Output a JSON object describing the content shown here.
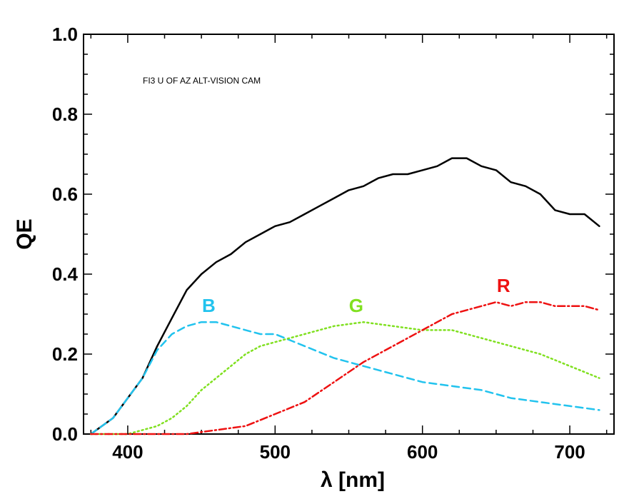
{
  "chart_data": {
    "type": "line",
    "xlabel": "λ [nm]",
    "ylabel": "QE",
    "xlim": [
      370,
      730
    ],
    "ylim": [
      0,
      1
    ],
    "xticks": [
      400,
      500,
      600,
      700
    ],
    "yticks": [
      0.0,
      0.2,
      0.4,
      0.6,
      0.8,
      1.0
    ],
    "xtick_labels": [
      "400",
      "500",
      "600",
      "700"
    ],
    "ytick_labels": [
      "0.0",
      "0.2",
      "0.4",
      "0.6",
      "0.8",
      "1.0"
    ],
    "annotation": {
      "text": "FI3 U OF AZ ALT-VISION CAM",
      "color": "#6b2e6b"
    },
    "grid": false,
    "series": [
      {
        "color": "#000000",
        "dash": "solid",
        "x": [
          375,
          390,
          400,
          410,
          420,
          430,
          440,
          450,
          460,
          470,
          480,
          490,
          500,
          510,
          520,
          530,
          540,
          550,
          560,
          570,
          580,
          590,
          600,
          610,
          620,
          630,
          640,
          650,
          660,
          670,
          680,
          690,
          700,
          710,
          720
        ],
        "y": [
          0.0,
          0.04,
          0.09,
          0.14,
          0.22,
          0.29,
          0.36,
          0.4,
          0.43,
          0.45,
          0.48,
          0.5,
          0.52,
          0.53,
          0.55,
          0.57,
          0.59,
          0.61,
          0.62,
          0.64,
          0.65,
          0.65,
          0.66,
          0.67,
          0.69,
          0.69,
          0.67,
          0.66,
          0.63,
          0.62,
          0.6,
          0.56,
          0.55,
          0.55,
          0.52
        ]
      },
      {
        "name": "B",
        "color": "#22c3ee",
        "dash": "dashed",
        "label_x": 455,
        "label_y": 0.305,
        "x": [
          375,
          390,
          400,
          410,
          420,
          430,
          440,
          450,
          460,
          470,
          480,
          490,
          500,
          520,
          540,
          560,
          580,
          600,
          620,
          640,
          660,
          680,
          700,
          720
        ],
        "y": [
          0.0,
          0.04,
          0.09,
          0.14,
          0.21,
          0.25,
          0.27,
          0.28,
          0.28,
          0.27,
          0.26,
          0.25,
          0.25,
          0.22,
          0.19,
          0.17,
          0.15,
          0.13,
          0.12,
          0.11,
          0.09,
          0.08,
          0.07,
          0.06
        ]
      },
      {
        "name": "G",
        "color": "#80e020",
        "dash": "dotted",
        "label_x": 555,
        "label_y": 0.305,
        "x": [
          375,
          400,
          410,
          420,
          430,
          440,
          450,
          460,
          470,
          480,
          490,
          500,
          510,
          520,
          540,
          560,
          580,
          600,
          620,
          640,
          660,
          680,
          700,
          720
        ],
        "y": [
          0.0,
          0.0,
          0.01,
          0.02,
          0.04,
          0.07,
          0.11,
          0.14,
          0.17,
          0.2,
          0.22,
          0.23,
          0.24,
          0.25,
          0.27,
          0.28,
          0.27,
          0.26,
          0.26,
          0.24,
          0.22,
          0.2,
          0.17,
          0.14
        ]
      },
      {
        "name": "R",
        "color": "#ee1111",
        "dash": "dashdot",
        "label_x": 655,
        "label_y": 0.355,
        "x": [
          375,
          420,
          440,
          460,
          480,
          500,
          520,
          540,
          560,
          580,
          600,
          610,
          620,
          630,
          640,
          650,
          660,
          670,
          680,
          690,
          700,
          710,
          720
        ],
        "y": [
          0.0,
          0.0,
          0.0,
          0.01,
          0.02,
          0.05,
          0.08,
          0.13,
          0.18,
          0.22,
          0.26,
          0.28,
          0.3,
          0.31,
          0.32,
          0.33,
          0.32,
          0.33,
          0.33,
          0.32,
          0.32,
          0.32,
          0.31
        ]
      }
    ]
  }
}
